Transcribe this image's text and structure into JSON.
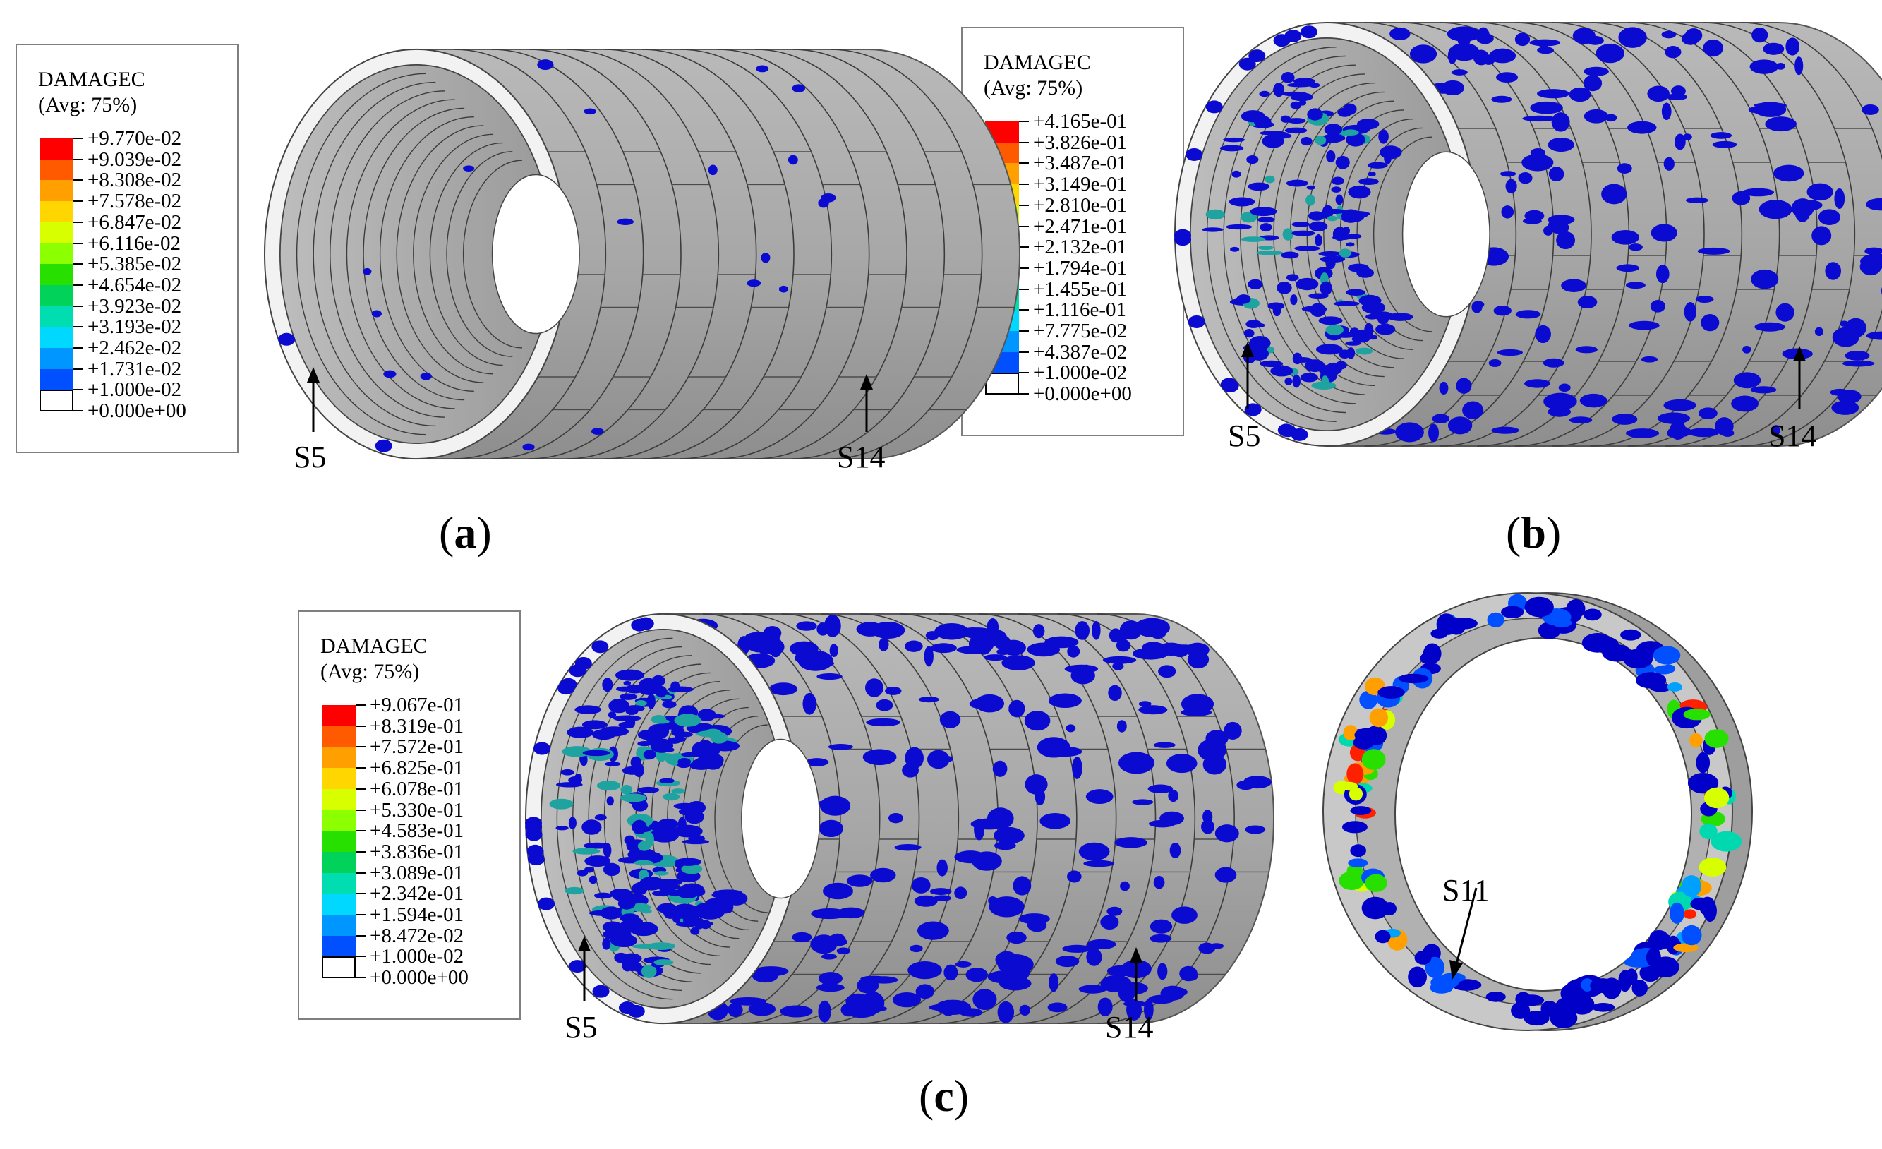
{
  "legend_colors": [
    "#ff0000",
    "#ff5a00",
    "#ff9f00",
    "#ffd600",
    "#d7ff00",
    "#8cff00",
    "#28e000",
    "#00d25a",
    "#00ddb0",
    "#00d8ff",
    "#0096ff",
    "#0050ff",
    "#0000d0",
    "#ffffff"
  ],
  "legend_a": {
    "title": "DAMAGEC",
    "subtitle": "(Avg: 75%)",
    "levels": [
      "+9.770e-02",
      "+9.039e-02",
      "+8.308e-02",
      "+7.578e-02",
      "+6.847e-02",
      "+6.116e-02",
      "+5.385e-02",
      "+4.654e-02",
      "+3.923e-02",
      "+3.193e-02",
      "+2.462e-02",
      "+1.731e-02",
      "+1.000e-02",
      "+0.000e+00"
    ]
  },
  "legend_b": {
    "title": "DAMAGEC",
    "subtitle": "(Avg: 75%)",
    "levels": [
      "+4.165e-01",
      "+3.826e-01",
      "+3.487e-01",
      "+3.149e-01",
      "+2.810e-01",
      "+2.471e-01",
      "+2.132e-01",
      "+1.794e-01",
      "+1.455e-01",
      "+1.116e-01",
      "+7.775e-02",
      "+4.387e-02",
      "+1.000e-02",
      "+0.000e+00"
    ]
  },
  "legend_c": {
    "title": "DAMAGEC",
    "subtitle": "(Avg: 75%)",
    "levels": [
      "+9.067e-01",
      "+8.319e-01",
      "+7.572e-01",
      "+6.825e-01",
      "+6.078e-01",
      "+5.330e-01",
      "+4.583e-01",
      "+3.836e-01",
      "+3.089e-01",
      "+2.342e-01",
      "+1.594e-01",
      "+8.472e-02",
      "+1.000e-02",
      "+0.000e+00"
    ]
  },
  "panels": {
    "a": {
      "open": "(",
      "letter": "a",
      "close": ")",
      "callout_left": "S5",
      "callout_right": "S14"
    },
    "b": {
      "open": "(",
      "letter": "b",
      "close": ")",
      "callout_left": "S5",
      "callout_right": "S14"
    },
    "c": {
      "open": "(",
      "letter": "c",
      "close": ")",
      "callout_left": "S5",
      "callout_right": "S14",
      "callout_ring": "S11"
    }
  },
  "colors": {
    "concrete": "#a9a9a9",
    "concrete_dark": "#8f8f8f",
    "concrete_light": "#c9c9c9",
    "ring_face": "#f2f2f2",
    "damage": "#0a0ad0"
  }
}
